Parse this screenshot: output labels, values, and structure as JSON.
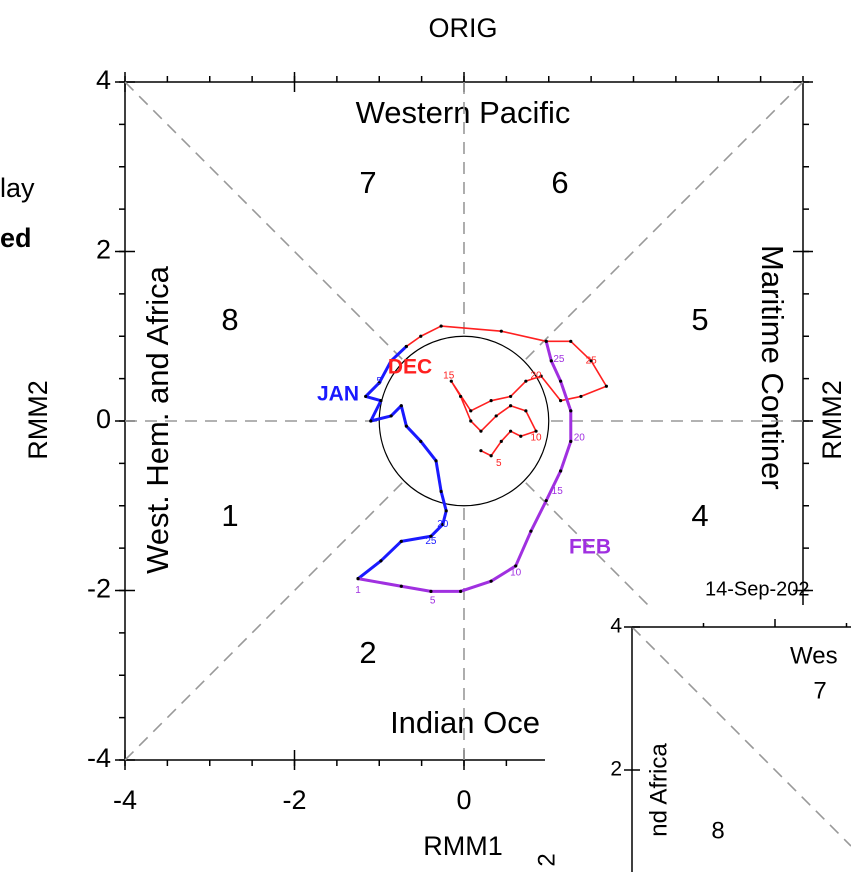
{
  "chart_data": {
    "type": "line",
    "title": "ORIG",
    "xlabel": "RMM1",
    "ylabel": "RMM2",
    "right_label": "RMM2",
    "fragments": [
      "lay",
      "ed"
    ],
    "regions": [
      "Western Pacific",
      "Indian Oce",
      "West. Hem. and Africa",
      "Maritime Continer"
    ],
    "phases": [
      "1",
      "2",
      "4",
      "5",
      "6",
      "7",
      "8"
    ],
    "date": "14-Sep-202",
    "xlim": [
      -4,
      4
    ],
    "ylim": [
      -4,
      4
    ],
    "xticks": [
      -4,
      -2,
      0
    ],
    "yticks": [
      4,
      2,
      0,
      -2,
      -4
    ],
    "minor_tick_step": 0.5,
    "series": [
      {
        "name": "DEC",
        "color": "#ff2020",
        "x": [
          0.2,
          0.32,
          0.44,
          0.55,
          0.67,
          0.85,
          0.73,
          0.55,
          0.38,
          0.2,
          0.08,
          -0.04,
          -0.15,
          0.08,
          0.32,
          0.55,
          0.73,
          0.91,
          1.14,
          1.38,
          1.68,
          1.5,
          1.26,
          0.97,
          0.44,
          -0.27,
          -0.51,
          -0.68
        ],
        "values": [
          -0.35,
          -0.41,
          -0.24,
          -0.12,
          -0.18,
          -0.12,
          0.12,
          0.18,
          0.06,
          -0.12,
          0.0,
          0.29,
          0.47,
          0.12,
          0.24,
          0.29,
          0.47,
          0.53,
          0.24,
          0.29,
          0.41,
          0.71,
          0.94,
          0.94,
          1.06,
          1.12,
          1.0,
          0.88
        ],
        "day_labels": [
          {
            "text": "5",
            "x": 0.41,
            "y": -0.5
          },
          {
            "text": "10",
            "x": 0.85,
            "y": -0.2
          },
          {
            "text": "15",
            "x": -0.18,
            "y": 0.53
          },
          {
            "text": "20",
            "x": 0.85,
            "y": 0.53
          },
          {
            "text": "25",
            "x": 1.5,
            "y": 0.71
          }
        ]
      },
      {
        "name": "JAN",
        "color": "#1a1aff",
        "x": [
          -0.68,
          -0.86,
          -1.0,
          -1.16,
          -0.98,
          -1.1,
          -0.86,
          -0.74,
          -0.68,
          -0.51,
          -0.33,
          -0.27,
          -0.21,
          -0.25,
          -0.39,
          -0.74,
          -0.98,
          -1.25
        ],
        "values": [
          0.88,
          0.71,
          0.45,
          0.29,
          0.24,
          0.0,
          0.06,
          0.18,
          -0.06,
          -0.24,
          -0.47,
          -0.83,
          -1.06,
          -1.22,
          -1.36,
          -1.42,
          -1.65,
          -1.86
        ],
        "day_labels": [
          {
            "text": "5",
            "x": -1.0,
            "y": 0.47
          },
          {
            "text": "20",
            "x": -0.25,
            "y": -1.22
          },
          {
            "text": "25",
            "x": -0.39,
            "y": -1.42
          }
        ]
      },
      {
        "name": "FEB",
        "color": "#a030e0",
        "x": [
          -1.25,
          -0.74,
          -0.39,
          -0.04,
          0.32,
          0.61,
          0.79,
          0.97,
          1.14,
          1.26,
          1.26,
          1.14,
          1.03,
          0.97
        ],
        "values": [
          -1.86,
          -1.95,
          -2.01,
          -2.01,
          -1.89,
          -1.71,
          -1.3,
          -0.94,
          -0.59,
          -0.24,
          0.12,
          0.47,
          0.71,
          0.94
        ],
        "day_labels": [
          {
            "text": "1",
            "x": -1.25,
            "y": -2.0
          },
          {
            "text": "5",
            "x": -0.37,
            "y": -2.12
          },
          {
            "text": "10",
            "x": 0.61,
            "y": -1.79
          },
          {
            "text": "15",
            "x": 1.1,
            "y": -0.83
          },
          {
            "text": "20",
            "x": 1.36,
            "y": -0.2
          },
          {
            "text": "25",
            "x": 1.12,
            "y": 0.73
          }
        ]
      }
    ]
  },
  "inset": {
    "ylim": [
      -4,
      4
    ],
    "yticks": [
      4,
      2
    ],
    "regions": [
      "Wes",
      "nd Africa"
    ],
    "phases": [
      "7",
      "8"
    ],
    "ylabel": "2"
  }
}
